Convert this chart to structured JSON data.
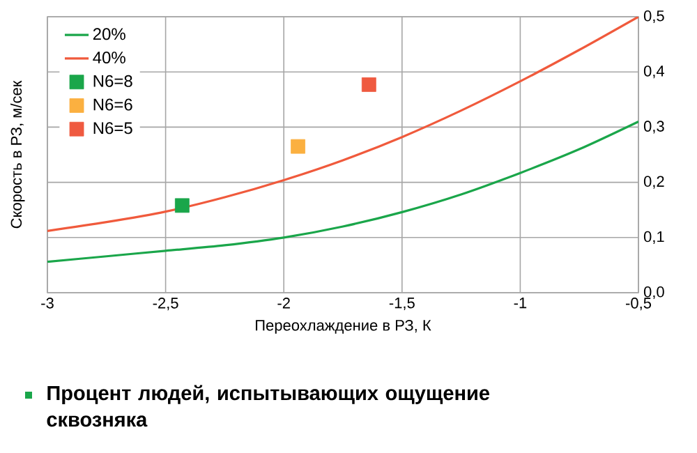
{
  "chart_data": {
    "type": "line",
    "xlabel": "Переохлаждение в РЗ, К",
    "ylabel": "Скорость в РЗ, м/сек",
    "xlim": [
      -3,
      -0.5
    ],
    "ylim": [
      0,
      0.5
    ],
    "xticks": [
      {
        "value": -3,
        "label": "-3"
      },
      {
        "value": -2.5,
        "label": "-2,5"
      },
      {
        "value": -2,
        "label": "-2"
      },
      {
        "value": -1.5,
        "label": "-1,5"
      },
      {
        "value": -1,
        "label": "-1"
      },
      {
        "value": -0.5,
        "label": "-0,5"
      }
    ],
    "yticks": [
      {
        "value": 0,
        "label": "0,0"
      },
      {
        "value": 0.1,
        "label": "0,1"
      },
      {
        "value": 0.2,
        "label": "0,2"
      },
      {
        "value": 0.3,
        "label": "0,3"
      },
      {
        "value": 0.4,
        "label": "0,4"
      },
      {
        "value": 0.5,
        "label": "0,5"
      }
    ],
    "grid": true,
    "legend": "top left",
    "series": [
      {
        "name": "20%",
        "color": "#1aa64a",
        "x": [
          -3,
          -2.75,
          -2.5,
          -2.25,
          -2,
          -1.75,
          -1.5,
          -1.25,
          -1,
          -0.75,
          -0.5
        ],
        "values": [
          0.056,
          0.066,
          0.076,
          0.086,
          0.1,
          0.12,
          0.146,
          0.178,
          0.217,
          0.26,
          0.31
        ]
      },
      {
        "name": "40%",
        "color": "#f05a3c",
        "x": [
          -3,
          -2.75,
          -2.5,
          -2.25,
          -2,
          -1.75,
          -1.5,
          -1.25,
          -1,
          -0.75,
          -0.5
        ],
        "values": [
          0.112,
          0.128,
          0.147,
          0.173,
          0.204,
          0.24,
          0.282,
          0.33,
          0.383,
          0.44,
          0.5
        ]
      },
      {
        "name": "N6=8",
        "type": "scatter",
        "marker": "square",
        "color": "#1aa64a",
        "x": [
          -2.43
        ],
        "values": [
          0.158
        ]
      },
      {
        "name": "N6=6",
        "type": "scatter",
        "marker": "square",
        "color": "#fbb040",
        "x": [
          -1.94
        ],
        "values": [
          0.265
        ]
      },
      {
        "name": "N6=5",
        "type": "scatter",
        "marker": "square",
        "color": "#ef5a40",
        "x": [
          -1.64
        ],
        "values": [
          0.377
        ]
      }
    ],
    "annotations": [
      "Процент людей, испытывающих ощущение сквозняка"
    ]
  }
}
